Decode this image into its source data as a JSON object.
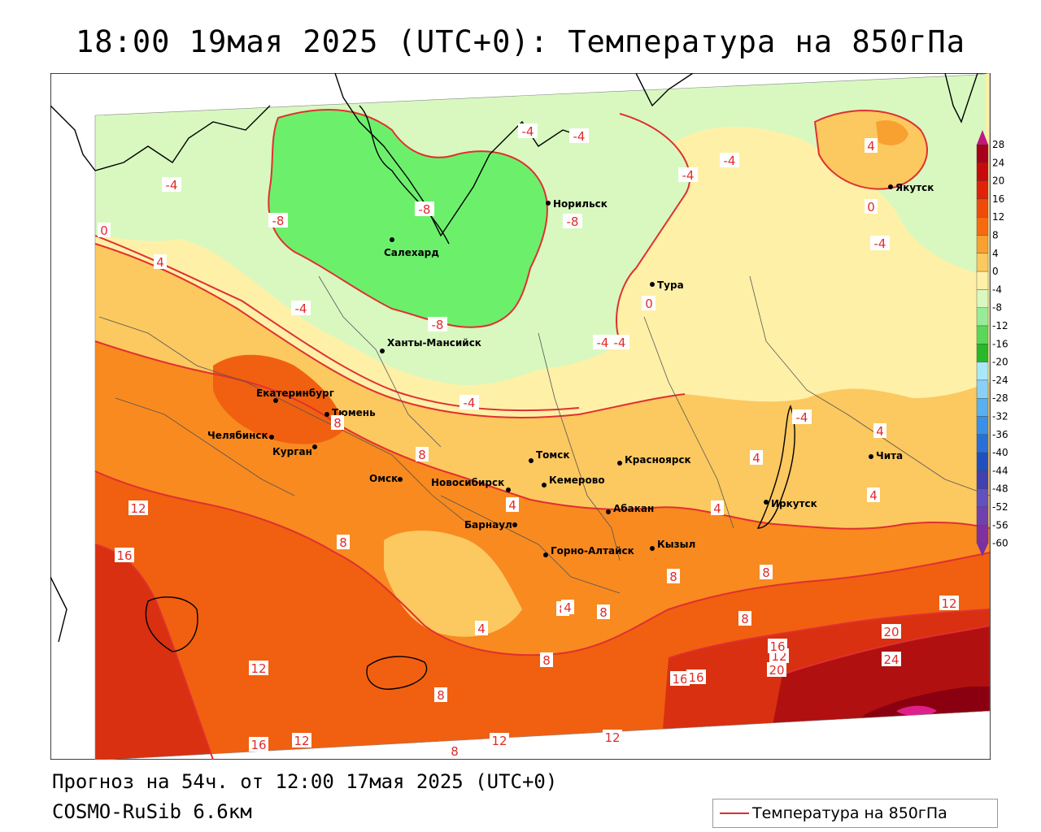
{
  "title": "18:00 19мая 2025 (UTC+0): Температура на 850гПа",
  "footer": {
    "forecast": "Прогноз на 54ч. от 12:00 17мая 2025 (UTC+0)",
    "model": "COSMO-RuSib 6.6км"
  },
  "legend": {
    "label": "Температура на 850гПа",
    "color": "#e02c2c"
  },
  "colorbar": {
    "ticks": [
      "28",
      "24",
      "20",
      "16",
      "12",
      "8",
      "4",
      "0",
      "-4",
      "-8",
      "-12",
      "-16",
      "-20",
      "-24",
      "-28",
      "-32",
      "-36",
      "-40",
      "-44",
      "-48",
      "-52",
      "-56",
      "-60"
    ],
    "colors": [
      "#a8001a",
      "#c80a0a",
      "#e0220a",
      "#f04a0a",
      "#f86a10",
      "#f8a030",
      "#fcc860",
      "#fff0a8",
      "#d8f8c0",
      "#98ec98",
      "#58d858",
      "#28b828",
      "#a8e8f8",
      "#88d0f8",
      "#58b0f0",
      "#3890e8",
      "#2870d8",
      "#2050c0",
      "#4040b0",
      "#6050c0",
      "#7040b0",
      "#8030a0"
    ]
  },
  "cities": [
    {
      "name": "Норильск"
    },
    {
      "name": "Якутск"
    },
    {
      "name": "Салехард"
    },
    {
      "name": "Тура"
    },
    {
      "name": "Ханты-Мансийск"
    },
    {
      "name": "Екатеринбург"
    },
    {
      "name": "Тюмень"
    },
    {
      "name": "Челябинск"
    },
    {
      "name": "Курган"
    },
    {
      "name": "Омск"
    },
    {
      "name": "Новосибирск"
    },
    {
      "name": "Томск"
    },
    {
      "name": "Красноярск"
    },
    {
      "name": "Кемерово"
    },
    {
      "name": "Абакан"
    },
    {
      "name": "Барнаул"
    },
    {
      "name": "Горно-Алтайск"
    },
    {
      "name": "Кызыл"
    },
    {
      "name": "Иркутск"
    },
    {
      "name": "Чита"
    }
  ],
  "isotherm_labels": [
    "-4",
    "-4",
    "-4",
    "-4",
    "-4",
    "-4",
    "-8",
    "-8",
    "-8",
    "-8",
    "-4",
    "-4",
    "-4",
    "4",
    "0",
    "0",
    "0",
    "4",
    "0",
    "4",
    "-4",
    "4",
    "4",
    "4",
    "4",
    "8",
    "8",
    "12",
    "16",
    "8",
    "4",
    "8",
    "8",
    "8",
    "8",
    "8",
    "12",
    "16",
    "12",
    "16",
    "20",
    "16",
    "12",
    "20",
    "24",
    "12",
    "8",
    "12",
    "16",
    "12",
    "8",
    "8",
    "4",
    "-4",
    "0"
  ]
}
